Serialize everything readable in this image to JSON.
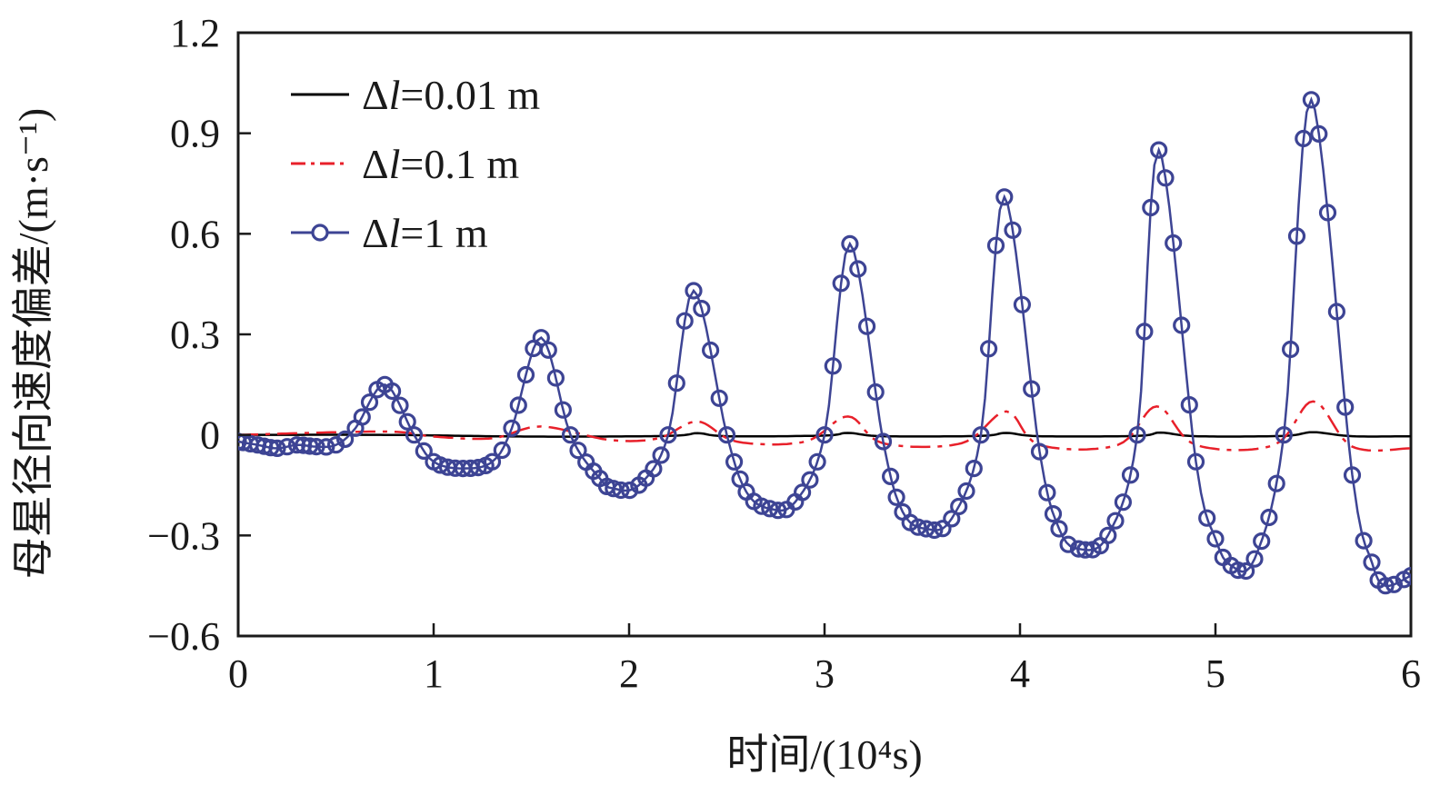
{
  "chart_data": {
    "type": "line",
    "title": "",
    "xlabel": "时间/(10⁴s)",
    "ylabel": "母星径向速度偏差/(m·s⁻¹)",
    "xlim": [
      0,
      6
    ],
    "ylim": [
      -0.6,
      1.2
    ],
    "x_ticks": [
      0,
      1,
      2,
      3,
      4,
      5,
      6
    ],
    "x_tick_labels": [
      "0",
      "1",
      "2",
      "3",
      "4",
      "5",
      "6"
    ],
    "y_ticks": [
      -0.6,
      -0.3,
      0,
      0.3,
      0.6,
      0.9,
      1.2
    ],
    "y_tick_labels": [
      "−0.6",
      "−0.3",
      "0",
      "0.3",
      "0.6",
      "0.9",
      "1.2"
    ],
    "legend_position": "top-left",
    "series": [
      {
        "name": "Δl=0.01 m",
        "legend_prefix": "Δ",
        "legend_var": "l",
        "legend_suffix": "=0.01 m",
        "color": "#000000",
        "style": "solid",
        "x": [
          0,
          0.75,
          1.5,
          2.2,
          2.35,
          2.5,
          3.0,
          3.12,
          3.3,
          3.8,
          3.93,
          4.1,
          4.6,
          4.72,
          4.9,
          5.35,
          5.5,
          5.7,
          6.0
        ],
        "y": [
          0.0,
          0.0,
          -0.005,
          -0.003,
          0.005,
          -0.004,
          -0.002,
          0.006,
          -0.004,
          -0.003,
          0.006,
          -0.004,
          -0.003,
          0.007,
          -0.004,
          -0.003,
          0.008,
          -0.004,
          -0.004
        ]
      },
      {
        "name": "Δl=0.1 m",
        "legend_prefix": "Δ",
        "legend_var": "l",
        "legend_suffix": "=0.1 m",
        "color": "#e8202a",
        "style": "dashdot",
        "x": [
          0,
          0.75,
          1.0,
          1.3,
          1.55,
          1.9,
          2.15,
          2.35,
          2.55,
          2.9,
          3.12,
          3.3,
          3.7,
          3.93,
          4.1,
          4.5,
          4.7,
          4.9,
          5.3,
          5.5,
          5.7,
          6.0
        ],
        "y": [
          0.0,
          0.01,
          -0.005,
          -0.01,
          0.025,
          -0.015,
          -0.01,
          0.04,
          -0.02,
          -0.02,
          0.055,
          -0.025,
          -0.025,
          0.07,
          -0.03,
          -0.03,
          0.085,
          -0.03,
          -0.03,
          0.1,
          -0.035,
          -0.04
        ]
      },
      {
        "name": "Δl=1 m",
        "legend_prefix": "Δ",
        "legend_var": "l",
        "legend_suffix": "=1 m",
        "color": "#3d4494",
        "style": "solid-circle-markers",
        "x": [
          0,
          0.1,
          0.2,
          0.3,
          0.4,
          0.5,
          0.6,
          0.75,
          0.9,
          1.0,
          1.15,
          1.3,
          1.4,
          1.55,
          1.7,
          1.85,
          1.92,
          2.05,
          2.2,
          2.33,
          2.5,
          2.6,
          2.72,
          2.85,
          3.0,
          3.13,
          3.3,
          3.4,
          3.52,
          3.65,
          3.8,
          3.92,
          4.1,
          4.2,
          4.3,
          4.45,
          4.6,
          4.71,
          4.9,
          5.0,
          5.08,
          5.2,
          5.35,
          5.49,
          5.7,
          5.8,
          5.87,
          6.0
        ],
        "y": [
          -0.02,
          -0.03,
          -0.04,
          -0.03,
          -0.035,
          -0.03,
          0.02,
          0.15,
          0.0,
          -0.08,
          -0.1,
          -0.08,
          0.02,
          0.29,
          0.0,
          -0.13,
          -0.16,
          -0.15,
          0.0,
          0.43,
          0.0,
          -0.17,
          -0.22,
          -0.2,
          0.0,
          0.57,
          -0.02,
          -0.23,
          -0.28,
          -0.25,
          0.0,
          0.71,
          -0.05,
          -0.28,
          -0.34,
          -0.3,
          0.0,
          0.85,
          -0.08,
          -0.31,
          -0.39,
          -0.37,
          0.0,
          1.0,
          -0.12,
          -0.38,
          -0.45,
          -0.42
        ]
      }
    ]
  }
}
